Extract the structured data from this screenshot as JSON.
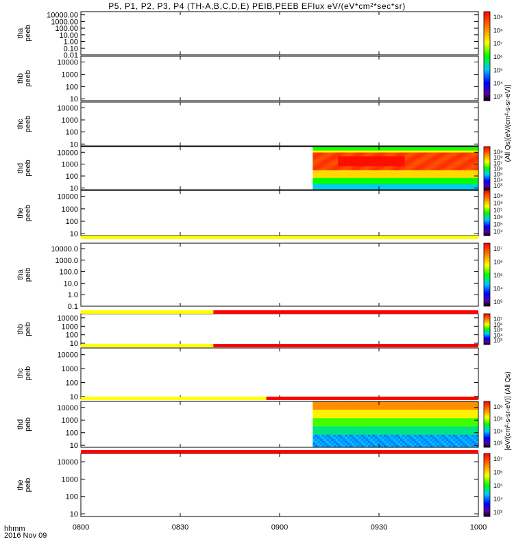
{
  "title": "P5, P1, P2, P3, P4 (TH-A,B,C,D,E) PEIB,PEEB EFlux eV/(eV*cm²*sec*sr)",
  "footer": {
    "time_label": "hhmm",
    "date_label": "2016 Nov 09"
  },
  "x_axis": {
    "ticks": [
      "0800",
      "0830",
      "0900",
      "0930",
      "1000"
    ],
    "range_minutes": [
      0,
      120
    ],
    "tick_minutes": [
      0,
      30,
      60,
      90,
      120
    ]
  },
  "colorbar_labels": {
    "electron": "(All Qs)[eV/(cm²-s-sr-eV)]",
    "ion": "[eV/(cm²-s-sr-eV)] (All Qs)"
  },
  "colors": {
    "flag_yellow": "#ffff00",
    "flag_red": "#ff0000"
  },
  "chart_data": [
    {
      "type": "heatmap",
      "probe_label": "tha",
      "product_label": "peeb",
      "scale": "log",
      "ytick_labels": [
        "10000.00",
        "1000.00",
        "100.00",
        "10.00",
        "1.00",
        "0.10",
        "0.01"
      ],
      "ytick_values": [
        10000,
        1000,
        100,
        10,
        1,
        0.1,
        0.01
      ],
      "ylim": [
        0.01,
        30000
      ],
      "colorbar_ticks": [],
      "data_coverage": []
    },
    {
      "type": "heatmap",
      "probe_label": "thb",
      "product_label": "peeb",
      "scale": "log",
      "ytick_labels": [
        "10000",
        "1000",
        "100",
        "10"
      ],
      "ytick_values": [
        10000,
        1000,
        100,
        10
      ],
      "ylim": [
        7,
        30000
      ],
      "colorbar_ticks": [
        "10⁹",
        "10⁸",
        "10⁷",
        "10⁶",
        "10⁵",
        "10⁴",
        "10³"
      ],
      "data_coverage": []
    },
    {
      "type": "heatmap",
      "probe_label": "thc",
      "product_label": "peeb",
      "scale": "log",
      "ytick_labels": [
        "10000",
        "1000",
        "100",
        "10"
      ],
      "ytick_values": [
        10000,
        1000,
        100,
        10
      ],
      "ylim": [
        7,
        30000
      ],
      "colorbar_ticks": [],
      "data_coverage": []
    },
    {
      "type": "heatmap",
      "probe_label": "thd",
      "product_label": "peeb",
      "scale": "log",
      "ytick_labels": [
        "10000",
        "1000",
        "100",
        "10"
      ],
      "ytick_values": [
        10000,
        1000,
        100,
        10
      ],
      "ylim": [
        7,
        30000
      ],
      "colorbar_ticks": [
        "10⁹",
        "10⁸",
        "10⁷",
        "10⁶",
        "10⁵",
        "10⁴",
        "10³"
      ],
      "data_coverage": [
        [
          70,
          120
        ]
      ],
      "pattern": "electron"
    },
    {
      "type": "heatmap",
      "probe_label": "the",
      "product_label": "peeb",
      "scale": "log",
      "ytick_labels": [
        "10000",
        "1000",
        "100",
        "10"
      ],
      "ytick_values": [
        10000,
        1000,
        100,
        10
      ],
      "ylim": [
        7,
        30000
      ],
      "colorbar_ticks": [
        "10⁹",
        "10⁸",
        "10⁷",
        "10⁶",
        "10⁵",
        "10⁴"
      ],
      "data_coverage": []
    },
    {
      "type": "heatmap",
      "probe_label": "tha",
      "product_label": "peib",
      "scale": "log",
      "ytick_labels": [
        "10000.0",
        "1000.0",
        "100.0",
        "10.0",
        "1.0",
        "0.1"
      ],
      "ytick_values": [
        10000,
        1000,
        100,
        10,
        1,
        0.1
      ],
      "ylim": [
        0.1,
        30000
      ],
      "colorbar_ticks": [
        "10⁷",
        "10⁶",
        "10⁵",
        "10⁴",
        "10³"
      ],
      "data_coverage": [],
      "flag_bar": [
        {
          "from": 0,
          "to": 120,
          "color": "#ffff00"
        }
      ]
    },
    {
      "type": "heatmap",
      "probe_label": "thb",
      "product_label": "peib",
      "scale": "log",
      "ytick_labels": [
        "10000",
        "1000",
        "100",
        "10"
      ],
      "ytick_values": [
        10000,
        1000,
        100,
        10
      ],
      "ylim": [
        7,
        30000
      ],
      "colorbar_ticks": [
        "10⁷",
        "10⁶",
        "10⁵",
        "10⁴",
        "10³"
      ],
      "data_coverage": [],
      "flag_bar": [
        {
          "from": 0,
          "to": 40,
          "color": "#ffff00"
        },
        {
          "from": 40,
          "to": 120,
          "color": "#ff0000"
        }
      ]
    },
    {
      "type": "heatmap",
      "probe_label": "thc",
      "product_label": "peib",
      "scale": "log",
      "ytick_labels": [
        "10000",
        "1000",
        "100",
        "10"
      ],
      "ytick_values": [
        10000,
        1000,
        100,
        10
      ],
      "ylim": [
        7,
        30000
      ],
      "colorbar_ticks": [],
      "data_coverage": [],
      "flag_bar": [
        {
          "from": 0,
          "to": 40,
          "color": "#ffff00"
        },
        {
          "from": 40,
          "to": 120,
          "color": "#ff0000"
        }
      ]
    },
    {
      "type": "heatmap",
      "probe_label": "thd",
      "product_label": "peib",
      "scale": "log",
      "ytick_labels": [
        "10000",
        "1000",
        "100",
        "10"
      ],
      "ytick_values": [
        10000,
        1000,
        100,
        10
      ],
      "ylim": [
        7,
        30000
      ],
      "colorbar_ticks": [
        "10⁶",
        "10⁵",
        "10⁴",
        "10³"
      ],
      "data_coverage": [
        [
          70,
          120
        ]
      ],
      "pattern": "ion",
      "flag_bar": [
        {
          "from": 0,
          "to": 56,
          "color": "#ffff00"
        },
        {
          "from": 56,
          "to": 120,
          "color": "#ff0000"
        }
      ]
    },
    {
      "type": "heatmap",
      "probe_label": "the",
      "product_label": "peib",
      "scale": "log",
      "ytick_labels": [
        "10000",
        "1000",
        "100",
        "10"
      ],
      "ytick_values": [
        10000,
        1000,
        100,
        10
      ],
      "ylim": [
        7,
        30000
      ],
      "colorbar_ticks": [
        "10⁷",
        "10⁶",
        "10⁵",
        "10⁴",
        "10³"
      ],
      "data_coverage": [],
      "flag_bar": [
        {
          "from": 0,
          "to": 120,
          "color": "#ff0000"
        }
      ]
    }
  ]
}
